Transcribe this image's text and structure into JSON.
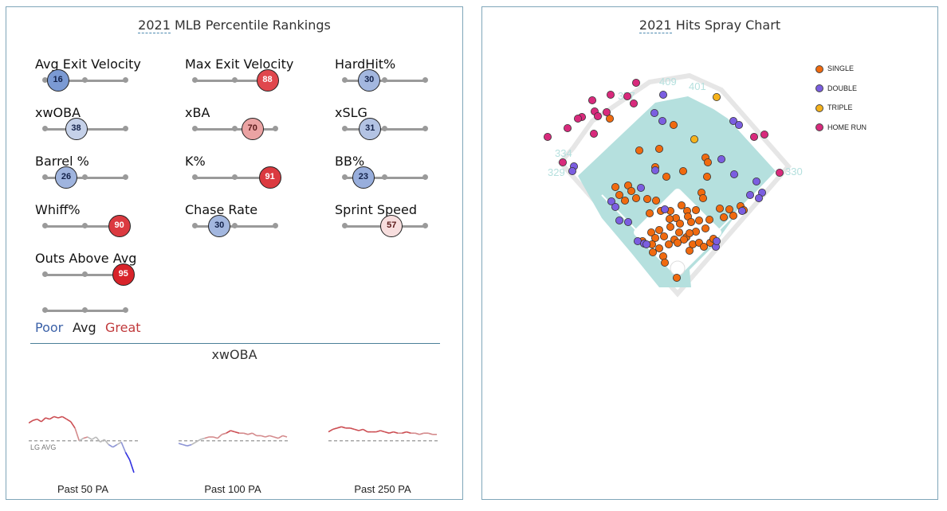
{
  "percentile": {
    "title_year": "2021",
    "title_rest": " MLB Percentile Rankings",
    "metrics": [
      {
        "label": "Avg Exit Velocity",
        "value": "16",
        "pct": 16,
        "color": "#7b9ad3",
        "text": "#13224a"
      },
      {
        "label": "Max Exit Velocity",
        "value": "88",
        "pct": 88,
        "color": "#e0474d",
        "text": "#ffffff"
      },
      {
        "label": "HardHit%",
        "value": "30",
        "pct": 30,
        "color": "#a3b7df",
        "text": "#13224a"
      },
      {
        "label": "xwOBA",
        "value": "38",
        "pct": 38,
        "color": "#c5d1e9",
        "text": "#13224a"
      },
      {
        "label": "xBA",
        "value": "70",
        "pct": 70,
        "color": "#eba3a3",
        "text": "#5a1a1a"
      },
      {
        "label": "xSLG",
        "value": "31",
        "pct": 31,
        "color": "#b3c3e3",
        "text": "#13224a"
      },
      {
        "label": "Barrel %",
        "value": "26",
        "pct": 26,
        "color": "#9fb4de",
        "text": "#13224a"
      },
      {
        "label": "K%",
        "value": "91",
        "pct": 91,
        "color": "#db3a40",
        "text": "#ffffff"
      },
      {
        "label": "BB%",
        "value": "23",
        "pct": 23,
        "color": "#98aedc",
        "text": "#13224a"
      },
      {
        "label": "Whiff%",
        "value": "90",
        "pct": 90,
        "color": "#db3a40",
        "text": "#ffffff"
      },
      {
        "label": "Chase Rate",
        "value": "30",
        "pct": 30,
        "color": "#a3b7df",
        "text": "#13224a"
      },
      {
        "label": "Sprint Speed",
        "value": "57",
        "pct": 57,
        "color": "#f7dede",
        "text": "#5a1a1a"
      },
      {
        "label": "Outs Above Avg",
        "value": "95",
        "pct": 95,
        "color": "#d8232a",
        "text": "#ffffff"
      }
    ],
    "scale_legend": {
      "poor": "Poor",
      "avg": "Avg",
      "great": "Great",
      "poor_color": "#3c62a8",
      "avg_color": "#222222",
      "great_color": "#c0393b"
    }
  },
  "xwoba_rolling": {
    "title": "xwOBA",
    "lg_avg_label": "LG AVG",
    "windows": [
      {
        "label": "Past 50 PA",
        "values": [
          0.385,
          0.395,
          0.4,
          0.39,
          0.405,
          0.4,
          0.41,
          0.405,
          0.41,
          0.4,
          0.39,
          0.365,
          0.315,
          0.325,
          0.33,
          0.32,
          0.33,
          0.31,
          0.32,
          0.3,
          0.29,
          0.3,
          0.31,
          0.27,
          0.24,
          0.19
        ]
      },
      {
        "label": "Past 100 PA",
        "values": [
          0.305,
          0.3,
          0.295,
          0.3,
          0.31,
          0.32,
          0.325,
          0.33,
          0.33,
          0.325,
          0.34,
          0.345,
          0.355,
          0.35,
          0.345,
          0.345,
          0.34,
          0.345,
          0.335,
          0.335,
          0.33,
          0.335,
          0.33,
          0.325,
          0.335,
          0.33
        ]
      },
      {
        "label": "Past 250 PA",
        "values": [
          0.35,
          0.36,
          0.365,
          0.37,
          0.365,
          0.365,
          0.36,
          0.355,
          0.36,
          0.35,
          0.35,
          0.35,
          0.355,
          0.35,
          0.345,
          0.35,
          0.345,
          0.345,
          0.35,
          0.345,
          0.345,
          0.34,
          0.345,
          0.345,
          0.34,
          0.34
        ]
      }
    ]
  },
  "chart_data": {
    "type": "scatter",
    "title_year": "2021",
    "title_rest": " Hits Spray Chart",
    "fence_labels": {
      "lf_line": "329",
      "lf": "334",
      "lcf": "377",
      "cf": "409",
      "rcf": "401",
      "rf_line": "330"
    },
    "legend": [
      {
        "name": "SINGLE",
        "color": "#f06a0f"
      },
      {
        "name": "DOUBLE",
        "color": "#7b5ee0"
      },
      {
        "name": "TRIPLE",
        "color": "#f5b21b"
      },
      {
        "name": "HOME RUN",
        "color": "#d82a7c"
      }
    ],
    "series": [
      {
        "name": "SINGLE",
        "points": [
          [
            160,
            140
          ],
          [
            240,
            148
          ],
          [
            197,
            180
          ],
          [
            222,
            178
          ],
          [
            280,
            189
          ],
          [
            283,
            195
          ],
          [
            217,
            201
          ],
          [
            252,
            206
          ],
          [
            231,
            213
          ],
          [
            282,
            213
          ],
          [
            275,
            233
          ],
          [
            277,
            240
          ],
          [
            167,
            226
          ],
          [
            183,
            224
          ],
          [
            187,
            231
          ],
          [
            172,
            236
          ],
          [
            179,
            243
          ],
          [
            193,
            240
          ],
          [
            207,
            241
          ],
          [
            218,
            243
          ],
          [
            298,
            253
          ],
          [
            310,
            254
          ],
          [
            324,
            250
          ],
          [
            328,
            255
          ],
          [
            315,
            262
          ],
          [
            303,
            264
          ],
          [
            210,
            259
          ],
          [
            224,
            256
          ],
          [
            236,
            256
          ],
          [
            257,
            256
          ],
          [
            250,
            249
          ],
          [
            268,
            255
          ],
          [
            258,
            263
          ],
          [
            243,
            265
          ],
          [
            235,
            266
          ],
          [
            248,
            272
          ],
          [
            262,
            270
          ],
          [
            272,
            268
          ],
          [
            285,
            267
          ],
          [
            280,
            278
          ],
          [
            268,
            282
          ],
          [
            236,
            276
          ],
          [
            222,
            280
          ],
          [
            212,
            283
          ],
          [
            217,
            290
          ],
          [
            228,
            288
          ],
          [
            241,
            292
          ],
          [
            234,
            298
          ],
          [
            256,
            289
          ],
          [
            264,
            298
          ],
          [
            272,
            296
          ],
          [
            286,
            296
          ],
          [
            290,
            291
          ],
          [
            278,
            301
          ],
          [
            222,
            303
          ],
          [
            214,
            308
          ],
          [
            227,
            313
          ],
          [
            213,
            298
          ],
          [
            247,
            283
          ],
          [
            253,
            292
          ],
          [
            245,
            296
          ],
          [
            260,
            284
          ],
          [
            244,
            340
          ],
          [
            201,
            294
          ],
          [
            229,
            321
          ],
          [
            260,
            306
          ]
        ]
      },
      {
        "name": "DOUBLE",
        "points": [
          [
            216,
            133
          ],
          [
            226,
            143
          ],
          [
            300,
            191
          ],
          [
            316,
            210
          ],
          [
            217,
            205
          ],
          [
            199,
            227
          ],
          [
            229,
            254
          ],
          [
            162,
            244
          ],
          [
            167,
            251
          ],
          [
            172,
            268
          ],
          [
            115,
            200
          ],
          [
            113,
            206
          ],
          [
            344,
            219
          ],
          [
            351,
            233
          ],
          [
            347,
            240
          ],
          [
            336,
            236
          ],
          [
            326,
            256
          ],
          [
            293,
            301
          ],
          [
            294,
            294
          ],
          [
            315,
            143
          ],
          [
            322,
            148
          ],
          [
            227,
            110
          ],
          [
            183,
            270
          ],
          [
            195,
            294
          ],
          [
            203,
            297
          ],
          [
            206,
            298
          ]
        ]
      },
      {
        "name": "TRIPLE",
        "points": [
          [
            294,
            113
          ],
          [
            266,
            166
          ]
        ]
      },
      {
        "name": "HOME RUN",
        "points": [
          [
            193,
            95
          ],
          [
            161,
            110
          ],
          [
            138,
            117
          ],
          [
            141,
            131
          ],
          [
            145,
            137
          ],
          [
            156,
            132
          ],
          [
            125,
            138
          ],
          [
            107,
            152
          ],
          [
            120,
            140
          ],
          [
            82,
            163
          ],
          [
            140,
            159
          ],
          [
            101,
            195
          ],
          [
            341,
            163
          ],
          [
            354,
            160
          ],
          [
            373,
            208
          ],
          [
            182,
            112
          ],
          [
            190,
            121
          ]
        ]
      }
    ]
  }
}
